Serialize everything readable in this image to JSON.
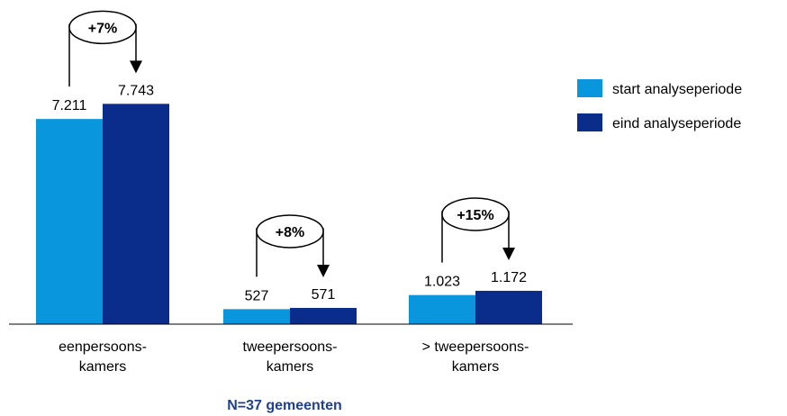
{
  "chart_data": {
    "type": "bar",
    "categories": [
      "eenpersoons-\nkamers",
      "tweepersoons-\nkamers",
      "> tweepersoons-\nkamers"
    ],
    "series": [
      {
        "name": "start analyseperiode",
        "color": "#0a96dc",
        "values": [
          7211,
          527,
          1023
        ],
        "value_labels": [
          "7.211",
          "527",
          "1.023"
        ]
      },
      {
        "name": "eind analyseperiode",
        "color": "#0a2d8c",
        "values": [
          7743,
          571,
          1172
        ],
        "value_labels": [
          "7.743",
          "571",
          "1.172"
        ]
      }
    ],
    "annotations": [
      "+7%",
      "+8%",
      "+15%"
    ],
    "footnote": "N=37 gemeenten",
    "ylim": [
      0,
      10000
    ],
    "legend": "right"
  }
}
